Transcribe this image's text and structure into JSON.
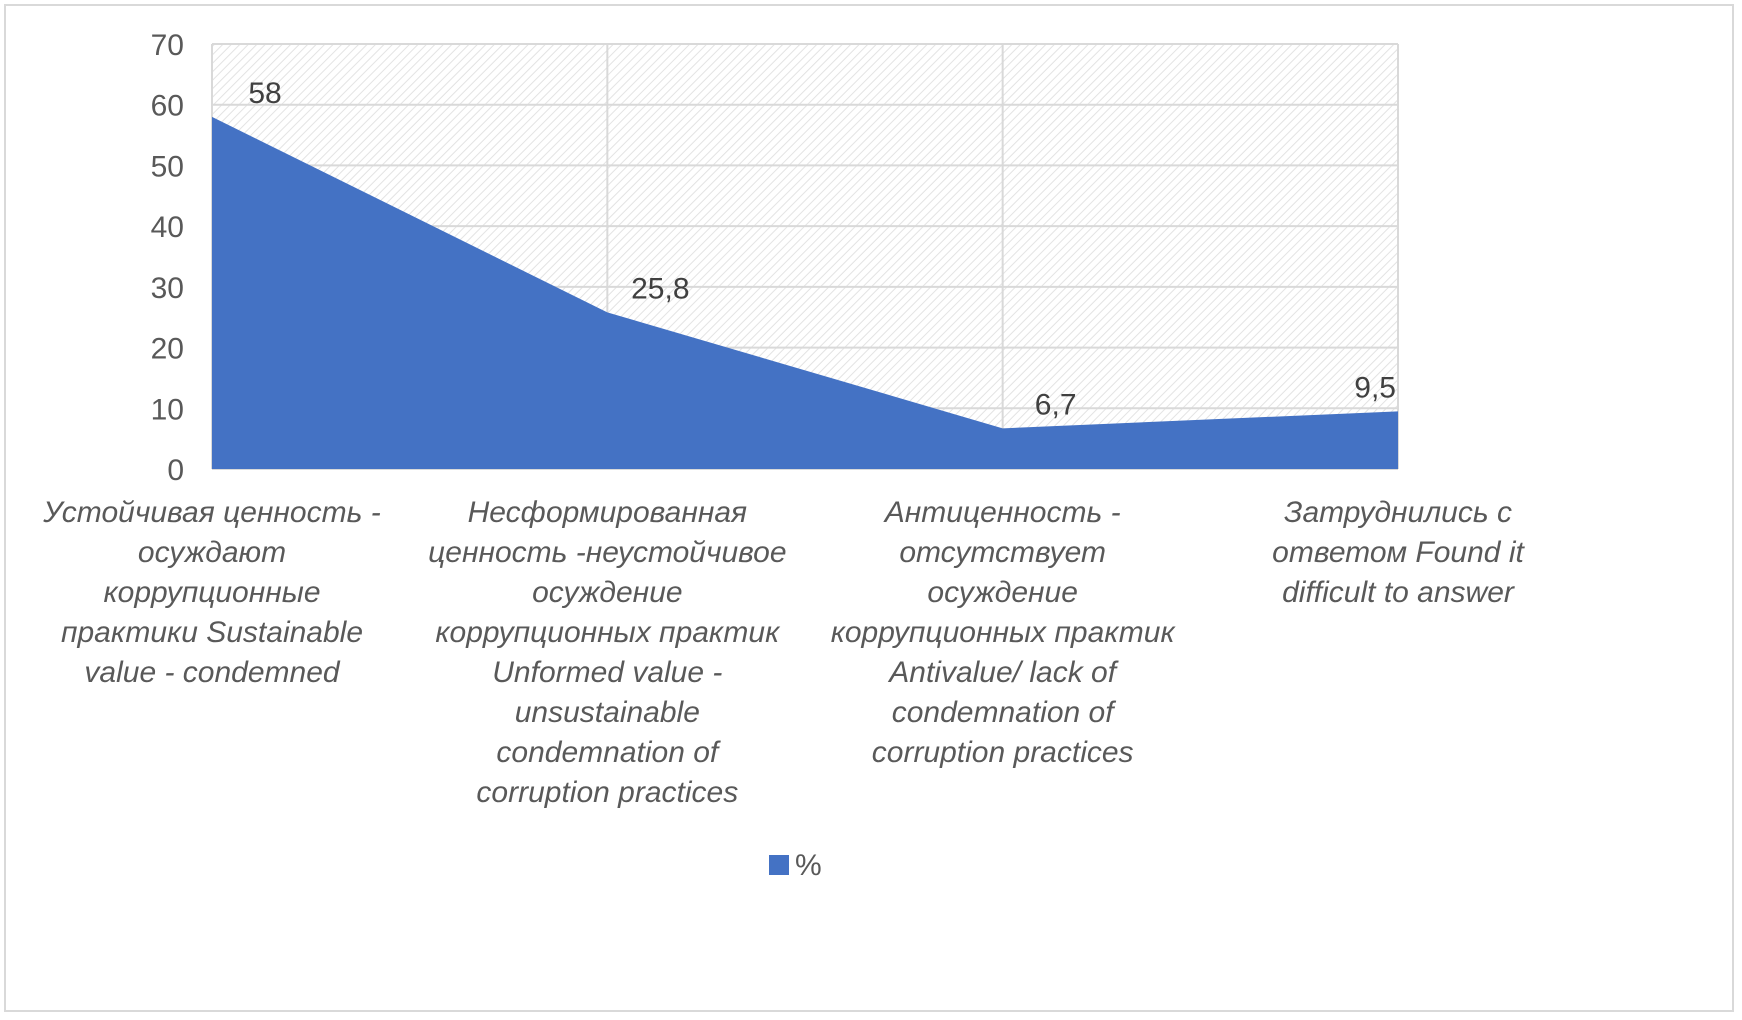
{
  "colors": {
    "series": "#4472c4",
    "grid": "#d9d9d9",
    "plot_hatch": "#e3e3e3",
    "text": "#595959"
  },
  "chart_data": {
    "type": "area",
    "categories": [
      [
        "Устойчивая ценность -",
        "осуждают",
        "коррупционные",
        "практики  Sustainable",
        "value - condemned"
      ],
      [
        "Несформированная",
        "ценность -неустойчивое",
        "осуждение",
        "коррупционных практик",
        "Unformed value -",
        "unsustainable",
        "condemnation of",
        "corruption practices"
      ],
      [
        "Антиценность -",
        "отсутствует",
        "осуждение",
        "коррупционных практик",
        "Antivalue/ lack of",
        "condemnation of",
        "corruption practices"
      ],
      [
        "Затруднились с",
        "ответом  Found it",
        "difficult to answer"
      ]
    ],
    "series": [
      {
        "name": "%",
        "values": [
          58,
          25.8,
          6.7,
          9.5
        ],
        "labels": [
          "58",
          "25,8",
          "6,7",
          "9,5"
        ]
      }
    ],
    "ylim": [
      0,
      70
    ],
    "yticks": [
      0,
      10,
      20,
      30,
      40,
      50,
      60,
      70
    ],
    "grid": true,
    "legend": "bottom"
  }
}
